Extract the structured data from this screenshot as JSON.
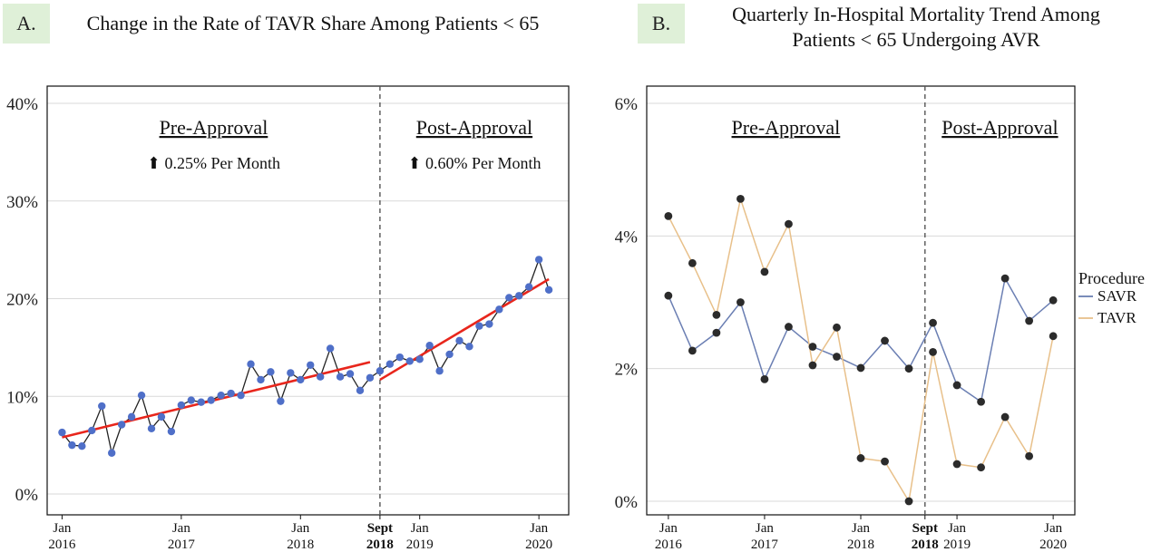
{
  "panels": [
    {
      "tag": "A.",
      "title_lines": [
        "Change in the Rate of TAVR Share Among Patients < 65"
      ]
    },
    {
      "tag": "B.",
      "title_lines": [
        "Quarterly In-Hospital Mortality Trend Among",
        "Patients < 65 Undergoing AVR"
      ]
    }
  ],
  "colors": {
    "tavr_share_points": "#4f6fc8",
    "tavr_share_line": "#222222",
    "trend_line": "#e8261c",
    "savr": "#6b7fb3",
    "tavr": "#e8c08a",
    "points_b": "#2b2b2b",
    "grid": "#d9d9d9",
    "divider": "#555555",
    "panel_tag_bg": "#dff0d8"
  },
  "chart_data": [
    {
      "type": "line",
      "title": "Change in the Rate of TAVR Share Among Patients < 65",
      "ylim": [
        0,
        40
      ],
      "y_ticks": [
        0,
        10,
        20,
        30,
        40
      ],
      "y_tick_labels": [
        "0%",
        "10%",
        "20%",
        "30%",
        "40%"
      ],
      "x_ticks": [
        {
          "t": 0,
          "line1": "Jan",
          "line2": "2016",
          "bold": false
        },
        {
          "t": 12,
          "line1": "Jan",
          "line2": "2017",
          "bold": false
        },
        {
          "t": 24,
          "line1": "Jan",
          "line2": "2018",
          "bold": false
        },
        {
          "t": 32,
          "line1": "Sept",
          "line2": "2018",
          "bold": true
        },
        {
          "t": 36,
          "line1": "Jan",
          "line2": "2019",
          "bold": false
        },
        {
          "t": 48,
          "line1": "Jan",
          "line2": "2020",
          "bold": false
        }
      ],
      "xlim": [
        -1.5,
        51
      ],
      "divider_t": 32,
      "series": [
        {
          "values": [
            6.3,
            5.0,
            4.9,
            6.5,
            9.0,
            4.2,
            7.1,
            7.9,
            10.1,
            6.7,
            7.9,
            6.4,
            9.1,
            9.6,
            9.4,
            9.6,
            10.1,
            10.3,
            10.1,
            13.3,
            11.7,
            12.5,
            9.5,
            12.4,
            11.7,
            13.2,
            12.0,
            14.9,
            12.0,
            12.3,
            10.6,
            11.9,
            12.6,
            13.3,
            14.0,
            13.6,
            13.8,
            15.2,
            12.6,
            14.3,
            15.7,
            15.1,
            17.2,
            17.4,
            18.9,
            20.1,
            20.3,
            21.2,
            24.0,
            20.9
          ]
        }
      ],
      "trend_lines": [
        {
          "from": [
            0,
            5.8
          ],
          "to": [
            31,
            13.5
          ]
        },
        {
          "from": [
            32,
            11.7
          ],
          "to": [
            49,
            22.0
          ]
        }
      ],
      "section_labels": [
        {
          "label": "Pre-Approval",
          "note": "0.25% Per Month"
        },
        {
          "label": "Post-Approval",
          "note": "0.60% Per Month"
        }
      ],
      "arrow_glyph": "⬆"
    },
    {
      "type": "line",
      "title": "Quarterly In-Hospital Mortality Trend Among Patients < 65 Undergoing AVR",
      "ylim": [
        0,
        6
      ],
      "y_ticks": [
        0,
        2,
        4,
        6
      ],
      "y_tick_labels": [
        "0%",
        "2%",
        "4%",
        "6%"
      ],
      "x_ticks": [
        {
          "t": 0,
          "line1": "Jan",
          "line2": "2016",
          "bold": false
        },
        {
          "t": 4,
          "line1": "Jan",
          "line2": "2017",
          "bold": false
        },
        {
          "t": 8,
          "line1": "Jan",
          "line2": "2018",
          "bold": false
        },
        {
          "t": 10.67,
          "line1": "Sept",
          "line2": "2018",
          "bold": true
        },
        {
          "t": 12,
          "line1": "Jan",
          "line2": "2019",
          "bold": false
        },
        {
          "t": 16,
          "line1": "Jan",
          "line2": "2020",
          "bold": false
        }
      ],
      "xlim": [
        -0.9,
        16.9
      ],
      "divider_t": 10.67,
      "series": [
        {
          "name": "SAVR",
          "values": [
            3.1,
            2.27,
            2.54,
            3.0,
            1.84,
            2.63,
            2.33,
            2.18,
            2.01,
            2.42,
            2.0,
            2.69,
            1.75,
            1.5,
            3.36,
            2.72,
            3.03
          ]
        },
        {
          "name": "TAVR",
          "values": [
            4.3,
            3.59,
            2.81,
            4.56,
            3.46,
            4.18,
            2.05,
            2.62,
            0.65,
            0.6,
            0.0,
            2.25,
            0.56,
            0.51,
            1.27,
            0.68,
            2.49
          ]
        }
      ],
      "section_labels": [
        {
          "label": "Pre-Approval"
        },
        {
          "label": "Post-Approval"
        }
      ],
      "legend_title": "Procedure"
    }
  ]
}
